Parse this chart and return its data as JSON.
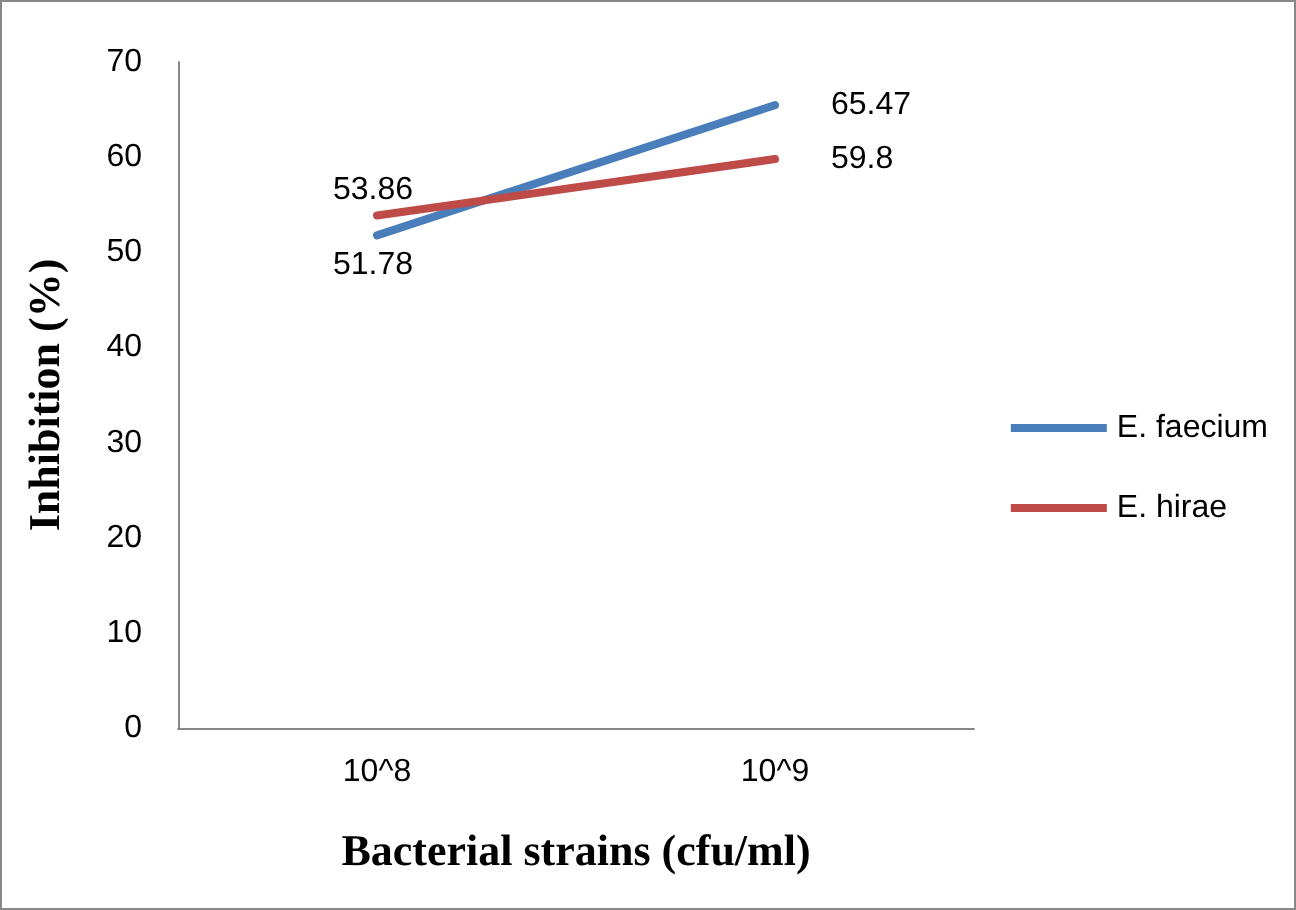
{
  "chart_data": {
    "type": "line",
    "xlabel": "Bacterial strains (cfu/ml)",
    "ylabel": "Inhibition (%)",
    "categories": [
      "10^8",
      "10^9"
    ],
    "series": [
      {
        "name": "E. faecium",
        "color": "#4a7ebb",
        "values": [
          51.78,
          65.47
        ]
      },
      {
        "name": "E. hirae",
        "color": "#be4b48",
        "values": [
          53.86,
          59.8
        ]
      }
    ],
    "ylim": [
      0,
      70
    ],
    "yticks": [
      0,
      10,
      20,
      30,
      40,
      50,
      60,
      70
    ],
    "grid": false,
    "legend": "right",
    "marker": "none",
    "line_style": "solid",
    "data_labels": true
  }
}
